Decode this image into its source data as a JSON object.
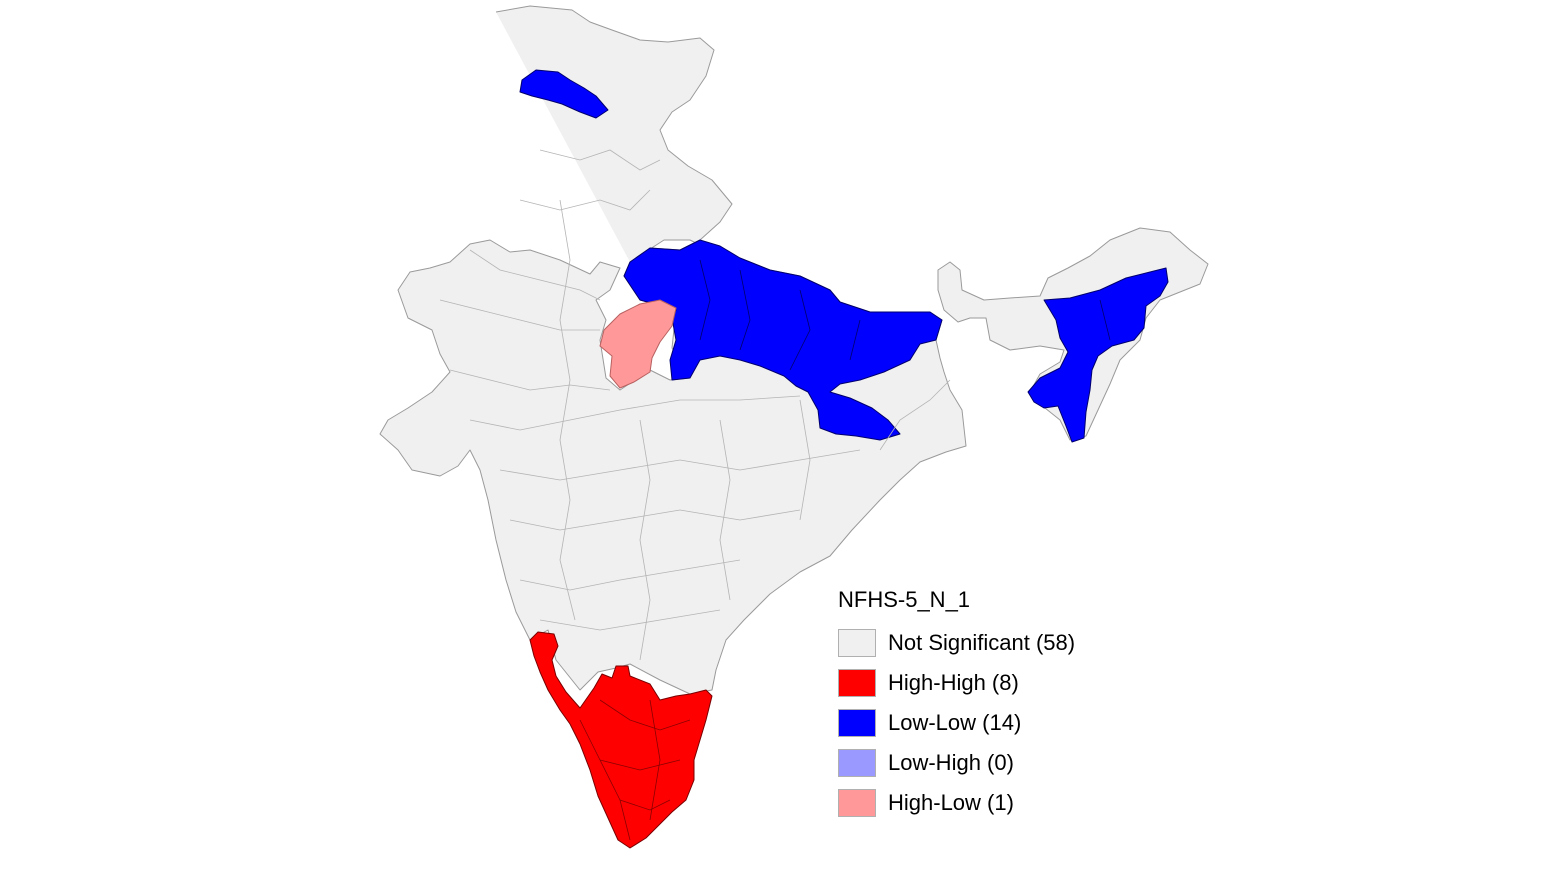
{
  "map": {
    "legend": {
      "title": "NFHS-5_N_1",
      "items": [
        {
          "label": "Not Significant (58)",
          "color": "#f0f0f0"
        },
        {
          "label": "High-High (8)",
          "color": "#ff0000"
        },
        {
          "label": "Low-Low (14)",
          "color": "#0000ff"
        },
        {
          "label": "Low-High (0)",
          "color": "#9999ff"
        },
        {
          "label": "High-Low (1)",
          "color": "#ff9999"
        }
      ]
    },
    "region_classes": {
      "mainland": "Not Significant",
      "northeast": "Not Significant",
      "jammu_kashmir_district": "Low-Low",
      "uttar_pradesh_bihar": "Low-Low",
      "assam_northeast": "Low-Low",
      "madhya_pradesh_district": "High-Low",
      "kerala_tamil_nadu": "High-High"
    }
  }
}
